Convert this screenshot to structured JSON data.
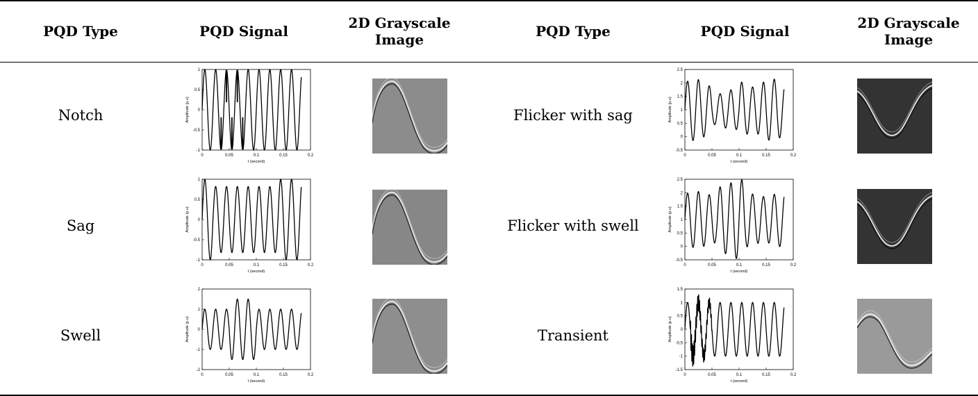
{
  "headers": [
    "PQD Type",
    "PQD Signal",
    "2D Grayscale Image",
    "PQD Type",
    "PQD Signal",
    "2D Grayscale Image"
  ],
  "rows": [
    {
      "left": {
        "type": "Notch",
        "plot": {
          "ylabel": "Amplitude (p.u)",
          "xlabel": "t (second)",
          "yticks": [
            "1",
            "0.5",
            "0",
            "-0.5",
            "-1"
          ],
          "xticks": [
            "0",
            "0.05",
            "0.1",
            "0.15",
            "0.2"
          ]
        },
        "image": {
          "shade": "#8c8c8c"
        }
      },
      "right": {
        "type": "Flicker with sag",
        "plot": {
          "ylabel": "Amplitude (p.u)",
          "xlabel": "t (second)",
          "yticks": [
            "2.5",
            "2",
            "1.5",
            "1",
            "0.5",
            "0",
            "-0.5"
          ],
          "xticks": [
            "0",
            "0.05",
            "0.1",
            "0.15",
            "0.2"
          ]
        },
        "image": {
          "shade": "#333333"
        }
      }
    },
    {
      "left": {
        "type": "Sag",
        "plot": {
          "ylabel": "Amplitude (p.u)",
          "xlabel": "t (second)",
          "yticks": [
            "1",
            "0.5",
            "0",
            "-0.5",
            "-1"
          ],
          "xticks": [
            "0",
            "0.05",
            "0.1",
            "0.15",
            "0.2"
          ]
        },
        "image": {
          "shade": "#878787"
        }
      },
      "right": {
        "type": "Flicker with swell",
        "plot": {
          "ylabel": "Amplitude (p.u)",
          "xlabel": "t (second)",
          "yticks": [
            "2.5",
            "2",
            "1.5",
            "1",
            "0.5",
            "0",
            "-0.5"
          ],
          "xticks": [
            "0",
            "0.05",
            "0.1",
            "0.15",
            "0.2"
          ]
        },
        "image": {
          "shade": "#333333"
        }
      }
    },
    {
      "left": {
        "type": "Swell",
        "plot": {
          "ylabel": "Amplitude (p.u)",
          "xlabel": "t (second)",
          "yticks": [
            "2",
            "1",
            "0",
            "-1",
            "-2"
          ],
          "xticks": [
            "0",
            "0.05",
            "0.1",
            "0.15",
            "0.2"
          ]
        },
        "image": {
          "shade": "#8e8e8e"
        }
      },
      "right": {
        "type": "Transient",
        "plot": {
          "ylabel": "Amplitude (p.u)",
          "xlabel": "t (second)",
          "yticks": [
            "1.5",
            "1",
            "0.5",
            "0",
            "-0.5",
            "-1",
            "-1.5"
          ],
          "xticks": [
            "0",
            "0.05",
            "0.1",
            "0.15",
            "0.2"
          ]
        },
        "image": {
          "shade": "#9a9a9a"
        }
      }
    }
  ]
}
